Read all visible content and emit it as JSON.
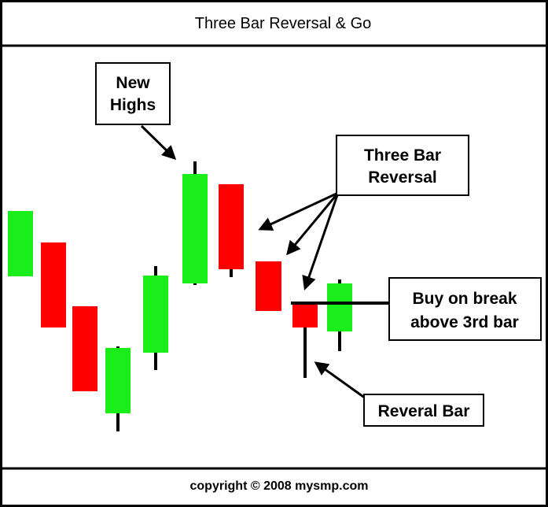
{
  "header": {
    "title": "Three Bar Reversal & Go"
  },
  "annotations": [
    {
      "lines": [
        "New",
        "Highs"
      ]
    },
    {
      "lines": [
        "Three Bar",
        "Reversal"
      ]
    },
    {
      "lines": [
        "Buy on break",
        "above 3rd bar"
      ]
    },
    {
      "lines": [
        "Reveral Bar"
      ]
    }
  ],
  "footer": {
    "text": "copyright © 2008 mysmp.com"
  }
}
